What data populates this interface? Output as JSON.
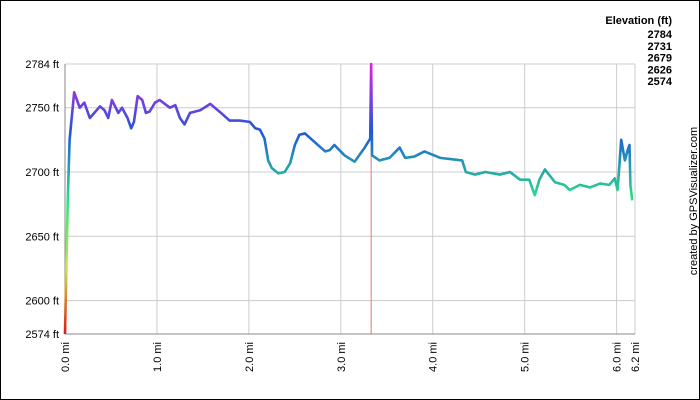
{
  "chart_data": {
    "type": "line",
    "legend": {
      "title": "Elevation (ft)",
      "scale": [
        {
          "value": 2784,
          "color": "#e020e0"
        },
        {
          "value": 2731,
          "color": "#2058d8"
        },
        {
          "value": 2679,
          "color": "#28e088"
        },
        {
          "value": 2626,
          "color": "#c8e840"
        },
        {
          "value": 2574,
          "color": "#e01818"
        }
      ]
    },
    "credit": "created by GPSVisualizer.com",
    "xlim": [
      0,
      6.2
    ],
    "ylim": [
      2574,
      2784
    ],
    "xticks": [
      {
        "value": 0,
        "label": "0.0 mi"
      },
      {
        "value": 1,
        "label": "1.0 mi"
      },
      {
        "value": 2,
        "label": "2.0 mi"
      },
      {
        "value": 3,
        "label": "3.0 mi"
      },
      {
        "value": 4,
        "label": "4.0 mi"
      },
      {
        "value": 5,
        "label": "5.0 mi"
      },
      {
        "value": 6,
        "label": "6.0 mi"
      },
      {
        "value": 6.2,
        "label": "6.2 mi"
      }
    ],
    "yticks": [
      {
        "value": 2574,
        "label": "2574 ft"
      },
      {
        "value": 2600,
        "label": "2600 ft"
      },
      {
        "value": 2650,
        "label": "2650 ft"
      },
      {
        "value": 2700,
        "label": "2700 ft"
      },
      {
        "value": 2750,
        "label": "2750 ft"
      },
      {
        "value": 2784,
        "label": "2784 ft"
      }
    ],
    "grid": true,
    "marker_x": 3.33,
    "x": [
      0,
      0.03,
      0.05,
      0.07,
      0.1,
      0.16,
      0.21,
      0.27,
      0.38,
      0.43,
      0.47,
      0.51,
      0.58,
      0.62,
      0.68,
      0.72,
      0.75,
      0.79,
      0.84,
      0.88,
      0.92,
      0.98,
      1.03,
      1.14,
      1.2,
      1.25,
      1.3,
      1.36,
      1.47,
      1.58,
      1.68,
      1.79,
      1.9,
      2.01,
      2.07,
      2.12,
      2.17,
      2.21,
      2.25,
      2.32,
      2.39,
      2.45,
      2.5,
      2.55,
      2.61,
      2.72,
      2.83,
      2.88,
      2.93,
      3.04,
      3.15,
      3.26,
      3.32,
      3.33,
      3.34,
      3.42,
      3.53,
      3.64,
      3.7,
      3.8,
      3.91,
      4.08,
      4.32,
      4.36,
      4.46,
      4.57,
      4.73,
      4.84,
      4.95,
      5.05,
      5.11,
      5.16,
      5.22,
      5.33,
      5.43,
      5.49,
      5.6,
      5.71,
      5.82,
      5.92,
      5.98,
      6.01,
      6.03,
      6.05,
      6.09,
      6.12,
      6.14,
      6.15,
      6.17
    ],
    "values": [
      2574,
      2678,
      2725,
      2740,
      2762,
      2750,
      2754,
      2742,
      2751,
      2748,
      2742,
      2756,
      2746,
      2750,
      2742,
      2734,
      2739,
      2759,
      2756,
      2746,
      2747,
      2754,
      2756,
      2750,
      2752,
      2742,
      2737,
      2746,
      2748,
      2753,
      2747,
      2740,
      2740,
      2739,
      2734,
      2733,
      2726,
      2709,
      2703,
      2699,
      2700,
      2707,
      2721,
      2729,
      2730,
      2723,
      2716,
      2717,
      2721,
      2713,
      2708,
      2719,
      2726,
      2784,
      2713,
      2709,
      2711,
      2719,
      2711,
      2712,
      2716,
      2711,
      2709,
      2700,
      2698,
      2700,
      2698,
      2700,
      2694,
      2694,
      2682,
      2694,
      2702,
      2692,
      2690,
      2686,
      2690,
      2688,
      2691,
      2690,
      2695,
      2686,
      2705,
      2725,
      2709,
      2717,
      2721,
      2690,
      2678
    ]
  }
}
